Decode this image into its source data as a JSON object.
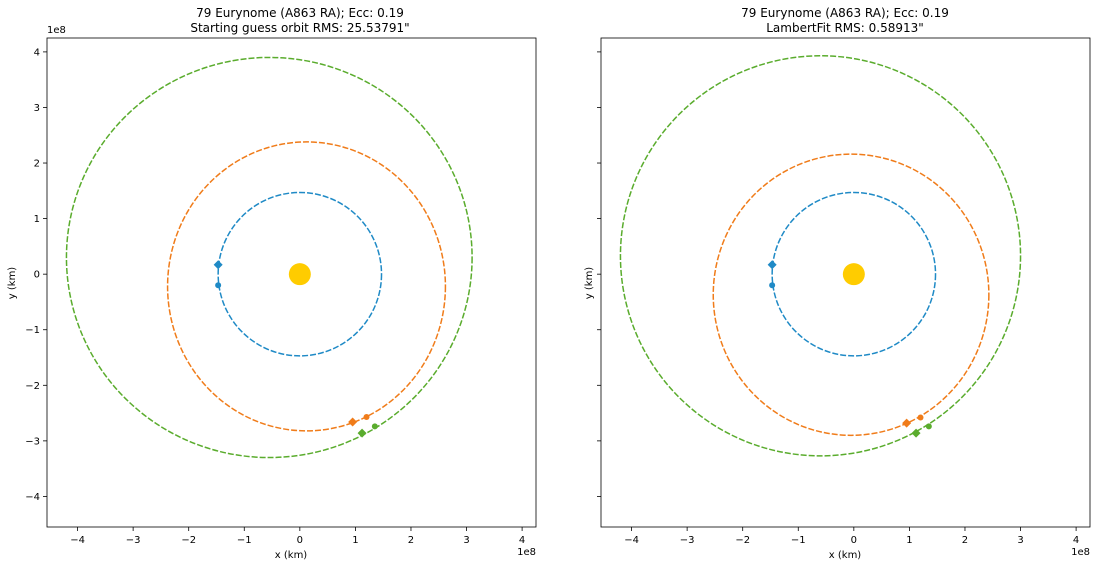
{
  "chart_data": [
    {
      "type": "scatter",
      "title_line1": "79 Eurynome (A863 RA); Ecc: 0.19",
      "title_line2": "Starting guess orbit RMS: 25.53791\"",
      "xlabel": "x (km)",
      "ylabel": "y (km)",
      "x_multiplier": "1e8",
      "y_multiplier": "1e8",
      "xlim": [
        -4.55,
        4.25
      ],
      "ylim": [
        -4.55,
        4.25
      ],
      "xticks": [
        "−4",
        "−3",
        "−2",
        "−1",
        "0",
        "1",
        "2",
        "3",
        "4"
      ],
      "yticks": [
        "−4",
        "−3",
        "−2",
        "−1",
        "0",
        "1",
        "2",
        "3",
        "4"
      ],
      "show_ytick_labels": true,
      "grid": false,
      "sun": {
        "x": 0,
        "y": 0,
        "color": "#ffcc00"
      },
      "orbits": [
        {
          "color": "#1f8ac6",
          "cx": 0,
          "cy": 0,
          "a": 1.47,
          "b": 1.47
        },
        {
          "color": "#f07c1a",
          "cx": 0.12,
          "cy": -0.22,
          "a": 2.5,
          "b": 2.6
        },
        {
          "color": "#5aac2d",
          "cx": -0.55,
          "cy": 0.3,
          "a": 3.65,
          "b": 3.6
        }
      ],
      "markers": [
        {
          "color": "#1f8ac6",
          "shape": "diamond",
          "x": -1.47,
          "y": 0.17
        },
        {
          "color": "#1f8ac6",
          "shape": "circle",
          "x": -1.47,
          "y": -0.2
        },
        {
          "color": "#f07c1a",
          "shape": "diamond",
          "x": 0.95,
          "y": -2.66
        },
        {
          "color": "#f07c1a",
          "shape": "circle",
          "x": 1.2,
          "y": -2.57
        },
        {
          "color": "#5aac2d",
          "shape": "diamond",
          "x": 1.12,
          "y": -2.86
        },
        {
          "color": "#5aac2d",
          "shape": "circle",
          "x": 1.35,
          "y": -2.74
        }
      ]
    },
    {
      "type": "scatter",
      "title_line1": "79 Eurynome (A863 RA); Ecc: 0.19",
      "title_line2": "LambertFit RMS: 0.58913\"",
      "xlabel": "x (km)",
      "ylabel": "y (km)",
      "x_multiplier": "1e8",
      "y_multiplier": "",
      "xlim": [
        -4.55,
        4.25
      ],
      "ylim": [
        -4.55,
        4.25
      ],
      "xticks": [
        "−4",
        "−3",
        "−2",
        "−1",
        "0",
        "1",
        "2",
        "3",
        "4"
      ],
      "yticks": [
        "−4",
        "−3",
        "−2",
        "−1",
        "0",
        "1",
        "2",
        "3",
        "4"
      ],
      "show_ytick_labels": false,
      "grid": false,
      "sun": {
        "x": 0,
        "y": 0,
        "color": "#ffcc00"
      },
      "orbits": [
        {
          "color": "#1f8ac6",
          "cx": 0,
          "cy": 0,
          "a": 1.47,
          "b": 1.47
        },
        {
          "color": "#f07c1a",
          "cx": -0.05,
          "cy": -0.37,
          "a": 2.48,
          "b": 2.53
        },
        {
          "color": "#5aac2d",
          "cx": -0.6,
          "cy": 0.33,
          "a": 3.6,
          "b": 3.6
        }
      ],
      "markers": [
        {
          "color": "#1f8ac6",
          "shape": "diamond",
          "x": -1.47,
          "y": 0.17
        },
        {
          "color": "#1f8ac6",
          "shape": "circle",
          "x": -1.47,
          "y": -0.2
        },
        {
          "color": "#f07c1a",
          "shape": "diamond",
          "x": 0.95,
          "y": -2.68
        },
        {
          "color": "#f07c1a",
          "shape": "circle",
          "x": 1.2,
          "y": -2.58
        },
        {
          "color": "#5aac2d",
          "shape": "diamond",
          "x": 1.12,
          "y": -2.86
        },
        {
          "color": "#5aac2d",
          "shape": "circle",
          "x": 1.35,
          "y": -2.74
        }
      ]
    }
  ]
}
